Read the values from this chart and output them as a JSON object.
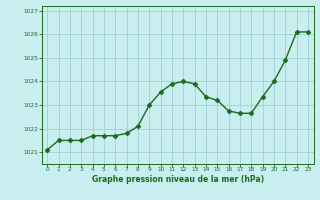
{
  "x": [
    0,
    1,
    2,
    3,
    4,
    5,
    6,
    7,
    8,
    9,
    10,
    11,
    12,
    13,
    14,
    15,
    16,
    17,
    18,
    19,
    20,
    21,
    22,
    23
  ],
  "y": [
    1021.1,
    1021.5,
    1021.5,
    1021.5,
    1021.7,
    1021.7,
    1021.7,
    1021.8,
    1022.1,
    1023.0,
    1023.55,
    1023.9,
    1024.0,
    1023.9,
    1023.35,
    1023.2,
    1022.75,
    1022.65,
    1022.65,
    1023.35,
    1024.0,
    1024.9,
    1026.1,
    1026.1
  ],
  "line_color": "#1a6b1a",
  "marker_color": "#1a6b1a",
  "bg_color": "#c8eef0",
  "grid_color": "#a0d0d8",
  "xlabel": "Graphe pression niveau de la mer (hPa)",
  "xlabel_color": "#1a6b1a",
  "tick_color": "#1a6b1a",
  "axis_color": "#1a6b1a",
  "ylim_min": 1020.5,
  "ylim_max": 1027.2,
  "yticks": [
    1021,
    1022,
    1023,
    1024,
    1025,
    1026,
    1027
  ],
  "xticks": [
    0,
    1,
    2,
    3,
    4,
    5,
    6,
    7,
    8,
    9,
    10,
    11,
    12,
    13,
    14,
    15,
    16,
    17,
    18,
    19,
    20,
    21,
    22,
    23
  ],
  "marker_size": 2.5,
  "line_width": 1.0
}
